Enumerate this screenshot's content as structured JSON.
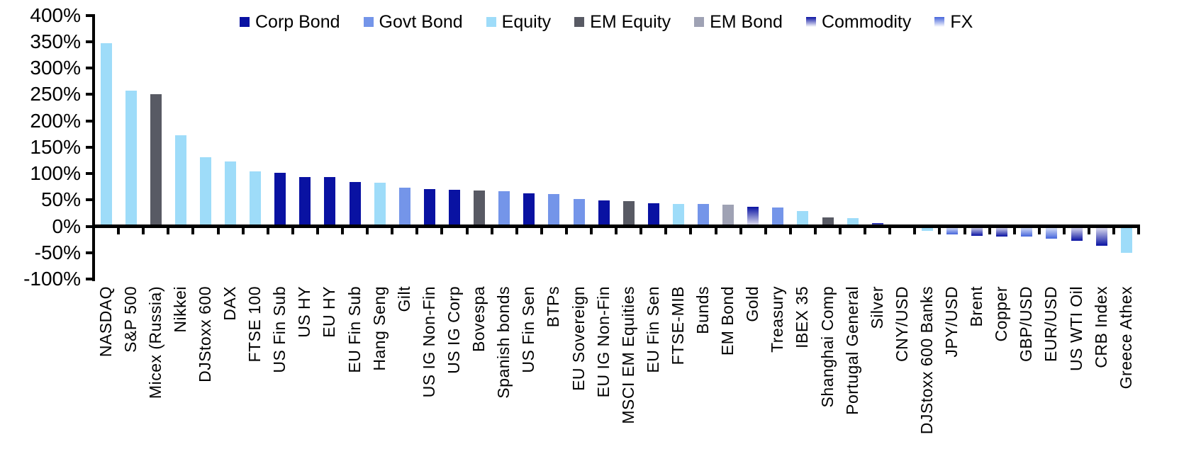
{
  "chart_data": {
    "type": "bar",
    "title": "",
    "xlabel": "",
    "ylabel": "",
    "unit": "%",
    "ylim": [
      -100,
      400
    ],
    "ytick_step": 50,
    "ytick_labels": [
      "400%",
      "350%",
      "300%",
      "250%",
      "200%",
      "150%",
      "100%",
      "50%",
      "0%",
      "-50%",
      "-100%"
    ],
    "grid": false,
    "legend_position": "top",
    "series_styles": [
      {
        "name": "Corp Bond",
        "color": "#0912A2",
        "gradient": false
      },
      {
        "name": "Govt Bond",
        "color": "#7495E9",
        "gradient": false
      },
      {
        "name": "Equity",
        "color": "#9EDCF9",
        "gradient": false
      },
      {
        "name": "EM Equity",
        "color": "#585A64",
        "gradient": false
      },
      {
        "name": "EM Bond",
        "color": "#9FA2B4",
        "gradient": false
      },
      {
        "name": "Commodity",
        "color": "#0912A2",
        "gradient": true,
        "gradient_light": "#E9E9F4"
      },
      {
        "name": "FX",
        "color": "#4565DB",
        "gradient": true,
        "gradient_light": "#E6ECFA"
      }
    ],
    "bars": [
      {
        "label": "NASDAQ",
        "value": 347,
        "series": "Equity"
      },
      {
        "label": "S&P 500",
        "value": 257,
        "series": "Equity"
      },
      {
        "label": "Micex (Russia)",
        "value": 250,
        "series": "EM Equity"
      },
      {
        "label": "Nikkei",
        "value": 172,
        "series": "Equity"
      },
      {
        "label": "DJStoxx 600",
        "value": 131,
        "series": "Equity"
      },
      {
        "label": "DAX",
        "value": 123,
        "series": "Equity"
      },
      {
        "label": "FTSE 100",
        "value": 104,
        "series": "Equity"
      },
      {
        "label": "US Fin Sub",
        "value": 101,
        "series": "Corp Bond"
      },
      {
        "label": "US HY",
        "value": 93,
        "series": "Corp Bond"
      },
      {
        "label": "EU HY",
        "value": 93,
        "series": "Corp Bond"
      },
      {
        "label": "EU Fin Sub",
        "value": 84,
        "series": "Corp Bond"
      },
      {
        "label": "Hang Seng",
        "value": 83,
        "series": "Equity"
      },
      {
        "label": "Gilt",
        "value": 73,
        "series": "Govt Bond"
      },
      {
        "label": "US IG Non-Fin",
        "value": 70,
        "series": "Corp Bond"
      },
      {
        "label": "US IG Corp",
        "value": 69,
        "series": "Corp Bond"
      },
      {
        "label": "Bovespa",
        "value": 68,
        "series": "EM Equity"
      },
      {
        "label": "Spanish bonds",
        "value": 67,
        "series": "Govt Bond"
      },
      {
        "label": "US Fin Sen",
        "value": 62,
        "series": "Corp Bond"
      },
      {
        "label": "BTPs",
        "value": 61,
        "series": "Govt Bond"
      },
      {
        "label": "EU Sovereign",
        "value": 52,
        "series": "Govt Bond"
      },
      {
        "label": "EU IG Non-Fin",
        "value": 49,
        "series": "Corp Bond"
      },
      {
        "label": "MSCI EM Equities",
        "value": 48,
        "series": "EM Equity"
      },
      {
        "label": "EU Fin Sen",
        "value": 44,
        "series": "Corp Bond"
      },
      {
        "label": "FTSE-MIB",
        "value": 43,
        "series": "Equity"
      },
      {
        "label": "Bunds",
        "value": 43,
        "series": "Govt Bond"
      },
      {
        "label": "EM Bond",
        "value": 41,
        "series": "EM Bond"
      },
      {
        "label": "Gold",
        "value": 37,
        "series": "Commodity"
      },
      {
        "label": "Treasury",
        "value": 35,
        "series": "Govt Bond"
      },
      {
        "label": "IBEX 35",
        "value": 29,
        "series": "Equity"
      },
      {
        "label": "Shanghai Comp",
        "value": 17,
        "series": "EM Equity"
      },
      {
        "label": "Portugal General",
        "value": 16,
        "series": "Equity"
      },
      {
        "label": "Silver",
        "value": 6,
        "series": "Commodity"
      },
      {
        "label": "CNY/USD",
        "value": -2,
        "series": "FX"
      },
      {
        "label": "DJStoxx 600 Banks",
        "value": -8,
        "series": "Equity"
      },
      {
        "label": "JPY/USD",
        "value": -16,
        "series": "FX"
      },
      {
        "label": "Brent",
        "value": -18,
        "series": "Commodity"
      },
      {
        "label": "Copper",
        "value": -19,
        "series": "Commodity"
      },
      {
        "label": "GBP/USD",
        "value": -20,
        "series": "FX"
      },
      {
        "label": "EUR/USD",
        "value": -23,
        "series": "FX"
      },
      {
        "label": "US WTI Oil",
        "value": -28,
        "series": "Commodity"
      },
      {
        "label": "CRB Index",
        "value": -37,
        "series": "Commodity"
      },
      {
        "label": "Greece Athex",
        "value": -50,
        "series": "Equity"
      }
    ]
  }
}
